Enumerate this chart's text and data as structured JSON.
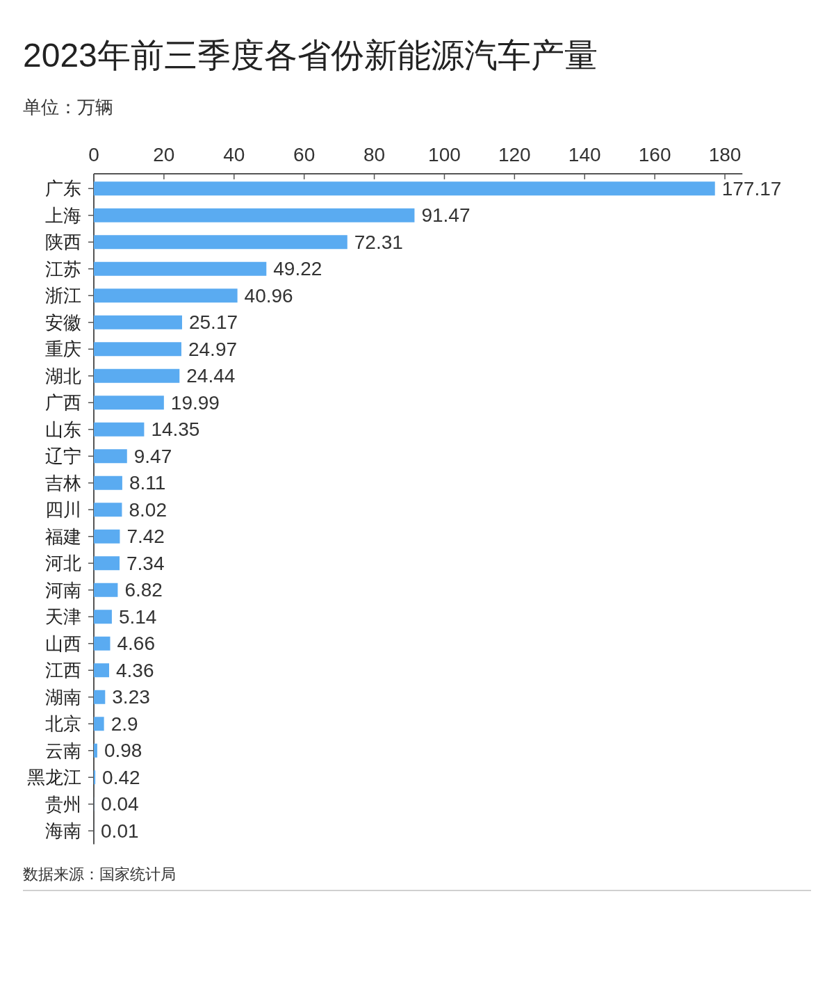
{
  "chart_data": {
    "type": "bar",
    "orientation": "horizontal",
    "title": "2023年前三季度各省份新能源汽车产量",
    "subtitle": "单位：万辆",
    "annotations": [
      "数据来源：国家统计局"
    ],
    "categories": [
      "广东",
      "上海",
      "陕西",
      "江苏",
      "浙江",
      "安徽",
      "重庆",
      "湖北",
      "广西",
      "山东",
      "辽宁",
      "吉林",
      "四川",
      "福建",
      "河北",
      "河南",
      "天津",
      "山西",
      "江西",
      "湖南",
      "北京",
      "云南",
      "黑龙江",
      "贵州",
      "海南"
    ],
    "values": [
      177.17,
      91.47,
      72.31,
      49.22,
      40.96,
      25.17,
      24.97,
      24.44,
      19.99,
      14.35,
      9.47,
      8.11,
      8.02,
      7.42,
      7.34,
      6.82,
      5.14,
      4.66,
      4.36,
      3.23,
      2.9,
      0.98,
      0.42,
      0.04,
      0.01
    ],
    "color": "#5aabf1",
    "xlim": [
      0,
      185
    ],
    "xticks": [
      0,
      20,
      40,
      60,
      80,
      100,
      120,
      140,
      160,
      180
    ],
    "data_labels": true
  }
}
